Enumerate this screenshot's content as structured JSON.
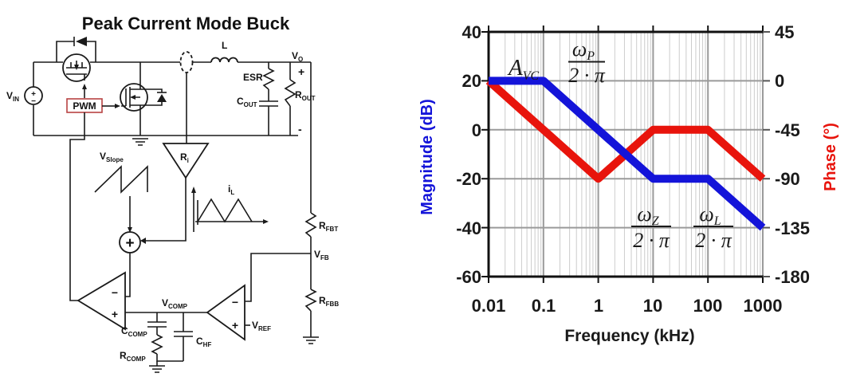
{
  "figure": {
    "title": "Peak Current Mode Buck"
  },
  "circuit": {
    "pwm_box_color": "#b84343",
    "labels": {
      "vin": {
        "main": "V",
        "sub": "IN"
      },
      "vin_plus": "+",
      "vin_minus": "−",
      "pwm": "PWM",
      "inductor": "L",
      "esr": "ESR",
      "cout": {
        "main": "C",
        "sub": "OUT"
      },
      "rout": {
        "main": "R",
        "sub": "OUT"
      },
      "vo": {
        "main": "V",
        "sub": "O"
      },
      "vo_plus": "+",
      "vo_minus": "-",
      "vslope": {
        "main": "V",
        "sub": "Slope"
      },
      "ri": {
        "main": "R",
        "sub": "i"
      },
      "il": {
        "main": "i",
        "sub": "L"
      },
      "rfbt": {
        "main": "R",
        "sub": "FBT"
      },
      "vfb": {
        "main": "V",
        "sub": "FB"
      },
      "rfbb": {
        "main": "R",
        "sub": "FBB"
      },
      "vcomp": {
        "main": "V",
        "sub": "COMP"
      },
      "vref": {
        "main": "V",
        "sub": "REF"
      },
      "ccomp": {
        "main": "C",
        "sub": "COMP"
      },
      "chf": {
        "main": "C",
        "sub": "HF"
      },
      "rcomp": {
        "main": "R",
        "sub": "COMP"
      },
      "summing_plus": "+",
      "comparator_minus": "−",
      "comparator_plus": "+",
      "erramp_minus": "−",
      "erramp_plus": "+"
    }
  },
  "chart_data": {
    "type": "line",
    "title": "",
    "xlabel": "Frequency (kHz)",
    "ylabel_left": "Magnitude (dB)",
    "ylabel_right": "Phase (°)",
    "x_scale": "log",
    "xlim": [
      0.01,
      1000
    ],
    "ylim_left": [
      -60,
      40
    ],
    "ylim_right": [
      -180,
      45
    ],
    "x_ticks": [
      "0.01",
      "0.1",
      "1",
      "10",
      "100",
      "1000"
    ],
    "y_left_ticks": [
      "40",
      "20",
      "0",
      "-20",
      "-40",
      "-60"
    ],
    "y_right_ticks": [
      "45",
      "0",
      "-45",
      "-90",
      "-135",
      "-180"
    ],
    "grid": true,
    "legend": "none",
    "series": [
      {
        "key": "phase",
        "name": "Phase",
        "axis": "right",
        "color": "#e8140c",
        "x": [
          0.01,
          1,
          10,
          100,
          1000
        ],
        "y": [
          0,
          -90,
          -45,
          -45,
          -90
        ]
      },
      {
        "key": "magnitude",
        "name": "Magnitude",
        "axis": "left",
        "color": "#1414d9",
        "x": [
          0.01,
          0.1,
          10,
          100,
          1000
        ],
        "y": [
          20,
          20,
          -20,
          -20,
          -40
        ]
      }
    ],
    "annotations": {
      "gain": {
        "main": "A",
        "sub": "VC"
      },
      "omega_p": {
        "num_main": "ω",
        "num_sub": "P",
        "den": "2 · π"
      },
      "omega_z": {
        "num_main": "ω",
        "num_sub": "Z",
        "den": "2 · π"
      },
      "omega_l": {
        "num_main": "ω",
        "num_sub": "L",
        "den": "2 · π"
      }
    }
  }
}
